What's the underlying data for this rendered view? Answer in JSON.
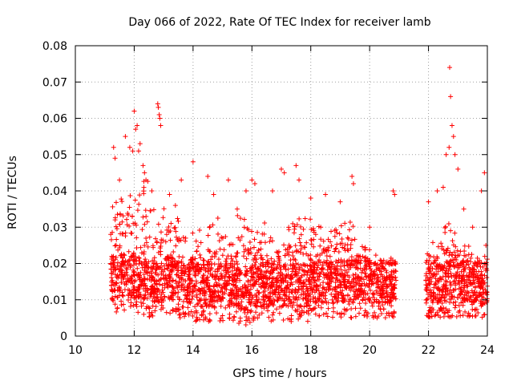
{
  "chart_data": {
    "type": "scatter",
    "title": "Day 066 of 2022, Rate Of TEC Index for receiver lamb",
    "xlabel": "GPS time / hours",
    "ylabel": "ROTI / TECUs",
    "xlim": [
      10,
      24
    ],
    "ylim": [
      0,
      0.08
    ],
    "grid": true,
    "marker": "+",
    "marker_color": "#ff0000",
    "x_ticks": [
      10,
      12,
      14,
      16,
      18,
      20,
      22,
      24
    ],
    "x_tick_labels": [
      "10",
      "12",
      "14",
      "16",
      "18",
      "20",
      "22",
      "24"
    ],
    "y_ticks": [
      0,
      0.01,
      0.02,
      0.03,
      0.04,
      0.05,
      0.06,
      0.07,
      0.08
    ],
    "y_tick_labels": [
      "0",
      "0.01",
      "0.02",
      "0.03",
      "0.04",
      "0.05",
      "0.06",
      "0.07",
      "0.08"
    ],
    "series": [
      {
        "name": "ROTI",
        "x": [
          11.3,
          11.35,
          11.5,
          11.7,
          11.85,
          11.95,
          12.0,
          12.05,
          12.1,
          12.15,
          12.2,
          12.3,
          12.35,
          12.4,
          12.6,
          12.8,
          12.82,
          12.85,
          12.87,
          12.9,
          13.2,
          13.4,
          13.6,
          14.0,
          14.5,
          14.7,
          15.2,
          15.5,
          15.8,
          16.0,
          16.1,
          16.7,
          17.0,
          17.1,
          17.5,
          17.6,
          18.0,
          18.5,
          19.0,
          19.4,
          19.45,
          20.0,
          20.8,
          20.85,
          22.0,
          22.3,
          22.5,
          22.6,
          22.7,
          22.72,
          22.75,
          22.8,
          22.85,
          22.9,
          23.0,
          23.2,
          23.5,
          23.8,
          23.9,
          23.95
        ],
        "y": [
          0.052,
          0.049,
          0.043,
          0.055,
          0.052,
          0.051,
          0.062,
          0.057,
          0.058,
          0.051,
          0.053,
          0.047,
          0.045,
          0.043,
          0.04,
          0.064,
          0.063,
          0.061,
          0.06,
          0.058,
          0.039,
          0.036,
          0.043,
          0.048,
          0.044,
          0.039,
          0.043,
          0.035,
          0.04,
          0.043,
          0.042,
          0.04,
          0.046,
          0.045,
          0.047,
          0.043,
          0.038,
          0.039,
          0.037,
          0.044,
          0.042,
          0.03,
          0.04,
          0.039,
          0.037,
          0.04,
          0.041,
          0.05,
          0.052,
          0.074,
          0.066,
          0.058,
          0.055,
          0.05,
          0.046,
          0.035,
          0.03,
          0.04,
          0.045,
          0.025
        ]
      }
    ],
    "series_bulk": {
      "description": "dense band of ROTI samples, per 0.5 h segment: [x_start, x_end, low, typical_high, spike_high]",
      "segments": [
        [
          11.2,
          11.5,
          0.006,
          0.03,
          0.045
        ],
        [
          11.5,
          12.0,
          0.007,
          0.032,
          0.046
        ],
        [
          12.0,
          12.5,
          0.006,
          0.035,
          0.05
        ],
        [
          12.5,
          13.0,
          0.005,
          0.028,
          0.042
        ],
        [
          13.0,
          13.5,
          0.006,
          0.03,
          0.042
        ],
        [
          13.5,
          14.0,
          0.005,
          0.022,
          0.035
        ],
        [
          14.0,
          14.5,
          0.004,
          0.022,
          0.036
        ],
        [
          14.5,
          15.0,
          0.004,
          0.024,
          0.04
        ],
        [
          15.0,
          15.5,
          0.004,
          0.024,
          0.038
        ],
        [
          15.5,
          16.0,
          0.003,
          0.027,
          0.04
        ],
        [
          16.0,
          16.5,
          0.004,
          0.025,
          0.038
        ],
        [
          16.5,
          17.0,
          0.004,
          0.024,
          0.036
        ],
        [
          17.0,
          17.5,
          0.004,
          0.026,
          0.038
        ],
        [
          17.5,
          18.0,
          0.004,
          0.027,
          0.039
        ],
        [
          18.0,
          18.5,
          0.005,
          0.028,
          0.036
        ],
        [
          18.5,
          19.0,
          0.005,
          0.027,
          0.035
        ],
        [
          19.0,
          19.5,
          0.005,
          0.027,
          0.038
        ],
        [
          19.5,
          20.0,
          0.005,
          0.022,
          0.032
        ],
        [
          20.0,
          20.5,
          0.005,
          0.02,
          0.03
        ],
        [
          20.5,
          20.9,
          0.005,
          0.018,
          0.028
        ],
        [
          21.9,
          22.5,
          0.005,
          0.022,
          0.034
        ],
        [
          22.5,
          23.0,
          0.005,
          0.025,
          0.038
        ],
        [
          23.0,
          23.5,
          0.005,
          0.022,
          0.034
        ],
        [
          23.5,
          24.0,
          0.005,
          0.018,
          0.028
        ]
      ]
    }
  }
}
